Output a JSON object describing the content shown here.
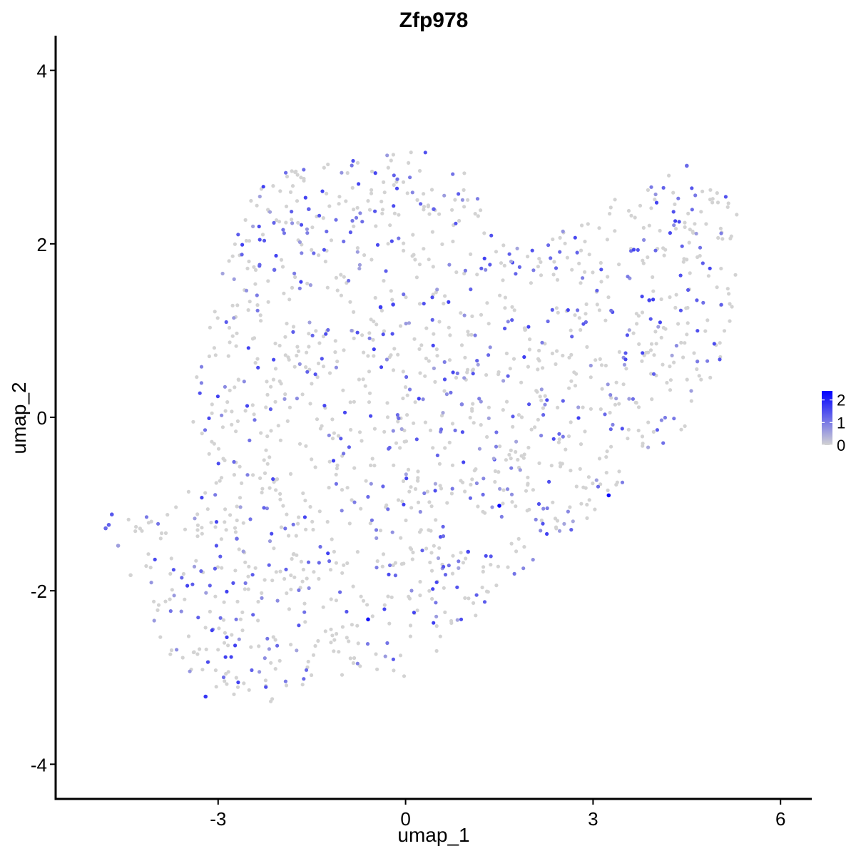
{
  "chart_data": {
    "type": "scatter",
    "title": "Zfp978",
    "xlabel": "umap_1",
    "ylabel": "umap_2",
    "xlim": [
      -5.6,
      6.5
    ],
    "ylim": [
      -4.4,
      4.4
    ],
    "x_ticks": [
      -3,
      0,
      3,
      6
    ],
    "y_ticks": [
      -4,
      -2,
      0,
      2,
      4
    ],
    "grid": false,
    "legend": {
      "position": "right",
      "type": "colorbar",
      "ticks": [
        0,
        1,
        2
      ],
      "min": 0,
      "max": 2.4,
      "color_low": "#d3d3d3",
      "color_high": "#0000ff"
    },
    "point_cloud": {
      "note_values": "cell embedding read as a cloud",
      "n_points": 1500,
      "region_polygon": [
        [
          -4.7,
          -1.25
        ],
        [
          -4.3,
          -1.05
        ],
        [
          -3.8,
          -1.1
        ],
        [
          -3.2,
          -0.55
        ],
        [
          -3.5,
          0.0
        ],
        [
          -3.2,
          0.9
        ],
        [
          -2.9,
          1.8
        ],
        [
          -2.5,
          2.5
        ],
        [
          -2.1,
          2.8
        ],
        [
          -1.5,
          2.95
        ],
        [
          -0.6,
          3.05
        ],
        [
          0.2,
          3.1
        ],
        [
          0.9,
          2.9
        ],
        [
          1.3,
          2.5
        ],
        [
          1.4,
          2.1
        ],
        [
          1.8,
          1.95
        ],
        [
          2.4,
          2.1
        ],
        [
          2.9,
          2.4
        ],
        [
          3.6,
          2.6
        ],
        [
          4.1,
          2.75
        ],
        [
          4.5,
          3.0
        ],
        [
          4.9,
          2.75
        ],
        [
          5.3,
          2.4
        ],
        [
          5.4,
          1.9
        ],
        [
          5.2,
          1.1
        ],
        [
          5.0,
          0.5
        ],
        [
          4.6,
          -0.1
        ],
        [
          3.9,
          -0.5
        ],
        [
          3.5,
          -0.85
        ],
        [
          3.0,
          -1.1
        ],
        [
          2.4,
          -1.5
        ],
        [
          1.7,
          -1.85
        ],
        [
          1.0,
          -2.4
        ],
        [
          0.6,
          -2.75
        ],
        [
          0.0,
          -3.0
        ],
        [
          -0.6,
          -2.95
        ],
        [
          -1.3,
          -3.0
        ],
        [
          -2.0,
          -3.35
        ],
        [
          -2.4,
          -3.45
        ],
        [
          -3.1,
          -3.2
        ],
        [
          -3.6,
          -2.9
        ],
        [
          -4.0,
          -2.5
        ],
        [
          -4.3,
          -2.05
        ],
        [
          -4.15,
          -1.4
        ]
      ],
      "expressing_fraction": 0.3
    },
    "highlight_points": [
      {
        "x": 1.5,
        "y": -1.02,
        "value": 2.4
      },
      {
        "x": 3.25,
        "y": -0.9,
        "value": 2.3
      },
      {
        "x": -0.6,
        "y": -2.33,
        "value": 2.2
      },
      {
        "x": -3.2,
        "y": -3.22,
        "value": 1.8
      },
      {
        "x": 1.0,
        "y": -1.55,
        "value": 1.6
      },
      {
        "x": -0.4,
        "y": 1.27,
        "value": 1.7
      },
      {
        "x": -0.2,
        "y": 1.3,
        "value": 1.6
      },
      {
        "x": 3.9,
        "y": 1.35,
        "value": 1.6
      },
      {
        "x": -4.7,
        "y": -1.12,
        "value": 1.4
      },
      {
        "x": -4.75,
        "y": -1.24,
        "value": 1.3
      },
      {
        "x": -4.8,
        "y": -1.28,
        "value": 1.2
      },
      {
        "x": -4.6,
        "y": -1.48,
        "value": 0.6
      },
      {
        "x": -4.4,
        "y": -1.82,
        "value": 0.0
      },
      {
        "x": 4.5,
        "y": 2.9,
        "value": 1.2
      },
      {
        "x": 0.45,
        "y": 2.4,
        "value": 1.3
      },
      {
        "x": -1.55,
        "y": 2.4,
        "value": 1.3
      },
      {
        "x": -2.1,
        "y": 1.7,
        "value": 1.2
      },
      {
        "x": 0.9,
        "y": 0.15,
        "value": 0.9
      },
      {
        "x": -2.7,
        "y": -1.4,
        "value": 1.1
      }
    ]
  }
}
